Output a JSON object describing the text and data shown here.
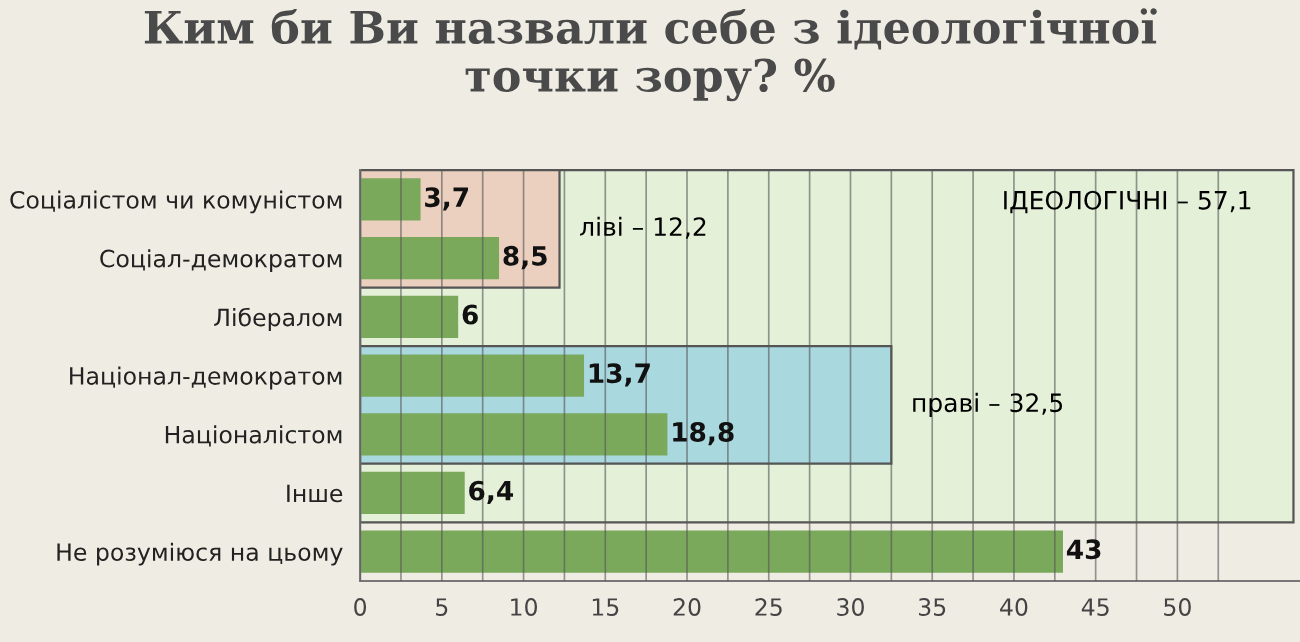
{
  "chart_data": {
    "type": "bar",
    "orientation": "horizontal",
    "title": "Ким би Ви назвали себе з ідеологічної\nточки зору? %",
    "categories": [
      "Соціалістом чи комуністом",
      "Соціал-демократом",
      "Лібералом",
      "Націонал-демократом",
      "Націоналістом",
      "Інше",
      "Не розуміюся на цьому"
    ],
    "values": [
      3.7,
      8.5,
      6,
      13.7,
      18.8,
      6.4,
      43
    ],
    "value_labels": [
      "3,7",
      "8,5",
      "6",
      "13,7",
      "18,8",
      "6,4",
      "43"
    ],
    "color": "#7aa95c",
    "xlim": [
      0,
      57.5
    ],
    "xticks": [
      0,
      {
        "value": 2.5,
        "label": null
      },
      5,
      {
        "value": 7.5,
        "label": null
      },
      10,
      {
        "value": 12.5,
        "label": null
      },
      15,
      {
        "value": 17.5,
        "label": null
      },
      20,
      {
        "value": 22.5,
        "label": null
      },
      25,
      {
        "value": 27.5,
        "label": null
      },
      30,
      {
        "value": 32.5,
        "label": null
      },
      35,
      {
        "value": 37.5,
        "label": null
      },
      40,
      {
        "value": 42.5,
        "label": null
      },
      45,
      {
        "value": 47.5,
        "label": null
      },
      50,
      {
        "value": 52.5,
        "label": null
      }
    ],
    "grid": "x",
    "bands": [
      {
        "axis": "x",
        "from": 0,
        "to": 57.1,
        "label": "ІДЕОЛОГІЧНІ – 57,1",
        "color": "#e4f0d8"
      },
      {
        "axis": "x",
        "from": 0,
        "to": 12.2,
        "label": "ліві – 12,2",
        "color": "#ebcfbf"
      },
      {
        "axis": "x",
        "from": 0,
        "to": 32.5,
        "label": "праві – 32,5",
        "color": "#a9d8df"
      }
    ]
  }
}
